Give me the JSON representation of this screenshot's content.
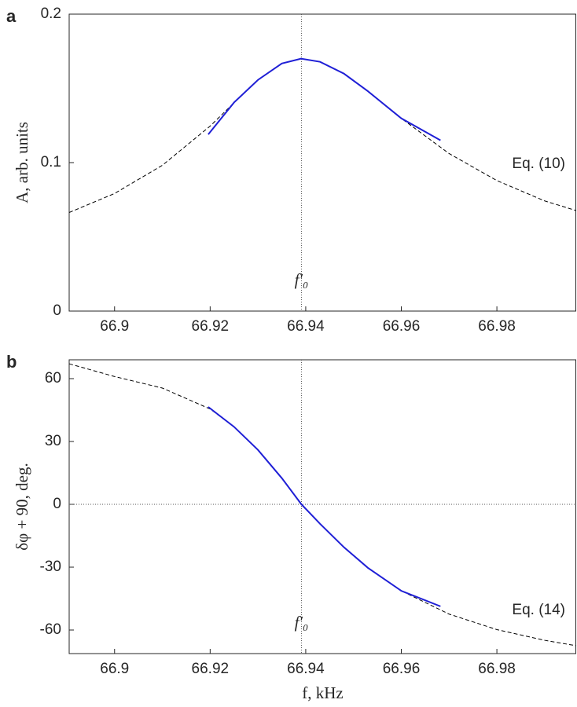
{
  "chart_data": [
    {
      "type": "line",
      "panel_label": "a",
      "ylabel": "A, arb. units",
      "xlim": [
        66.8905,
        66.9966
      ],
      "xticks": [
        66.9,
        66.92,
        66.94,
        66.96,
        66.98
      ],
      "ylim": [
        0,
        0.2
      ],
      "yticks": [
        0,
        0.1,
        0.2
      ],
      "vline": 66.9391,
      "vline_label": "f′₀",
      "annotation": "Eq. (10)",
      "series": [
        {
          "style": "dashed",
          "color": "#000000",
          "x": [
            66.8905,
            66.9,
            66.91,
            66.92,
            66.925,
            66.93,
            66.935,
            66.939,
            66.943,
            66.948,
            66.953,
            66.96,
            66.97,
            66.98,
            66.99,
            66.9966
          ],
          "values": [
            0.0664,
            0.0792,
            0.0982,
            0.1246,
            0.1403,
            0.1555,
            0.1667,
            0.17,
            0.1679,
            0.1599,
            0.1481,
            0.1298,
            0.1061,
            0.0879,
            0.0742,
            0.0677
          ]
        },
        {
          "style": "solid",
          "color": "#1f1fd6",
          "x": [
            66.9196,
            66.925,
            66.93,
            66.935,
            66.939,
            66.943,
            66.948,
            66.953,
            66.96,
            66.9682
          ],
          "values": [
            0.119,
            0.1405,
            0.1557,
            0.1668,
            0.17,
            0.1679,
            0.1599,
            0.1481,
            0.1298,
            0.115
          ]
        }
      ]
    },
    {
      "type": "line",
      "panel_label": "b",
      "ylabel": "δφ + 90, deg.",
      "xlabel": "f, kHz",
      "xlim": [
        66.8905,
        66.9966
      ],
      "xticks": [
        66.9,
        66.92,
        66.94,
        66.96,
        66.98
      ],
      "ylim": [
        -71.25,
        69
      ],
      "yticks": [
        -60,
        -30,
        0,
        30,
        60
      ],
      "vline": 66.9391,
      "hline": 0,
      "vline_label": "f′₀",
      "annotation": "Eq. (14)",
      "series": [
        {
          "style": "dashed",
          "color": "#000000",
          "x": [
            66.8905,
            66.9,
            66.91,
            66.92,
            66.925,
            66.93,
            66.935,
            66.939,
            66.943,
            66.948,
            66.953,
            66.96,
            66.97,
            66.98,
            66.99,
            66.9966
          ],
          "values": [
            67.1,
            61,
            55.5,
            45.5,
            37,
            26,
            12.5,
            0,
            -9.3,
            -20.5,
            -30.3,
            -41.3,
            -52.4,
            -59.8,
            -64.9,
            -67.5
          ]
        },
        {
          "style": "solid",
          "color": "#1f1fd6",
          "x": [
            66.9196,
            66.925,
            66.93,
            66.935,
            66.9391,
            66.943,
            66.948,
            66.953,
            66.96,
            66.9682
          ],
          "values": [
            46.5,
            37,
            26,
            12.5,
            0,
            -9.3,
            -20.5,
            -30.3,
            -41.3,
            -48.7
          ]
        }
      ]
    }
  ]
}
